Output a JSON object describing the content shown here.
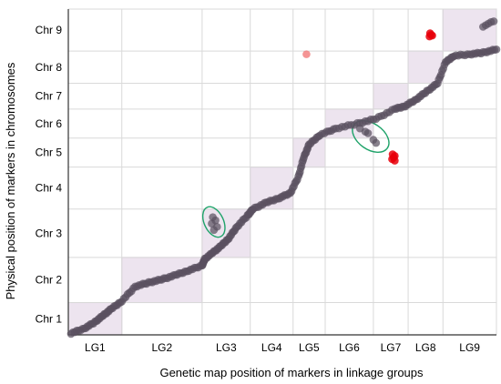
{
  "chart_data": {
    "type": "scatter",
    "xlabel": "Genetic map position of markers in linkage groups",
    "ylabel": "Physical position of markers in chromosomes",
    "x_categories": [
      "LG1",
      "LG2",
      "LG3",
      "LG4",
      "LG5",
      "LG6",
      "LG7",
      "LG8",
      "LG9"
    ],
    "y_categories": [
      "Chr 1",
      "Chr 2",
      "Chr 3",
      "Chr 4",
      "Chr 5",
      "Chr 6",
      "Chr 7",
      "Chr 8",
      "Chr 9"
    ],
    "x_boundaries": [
      0,
      1.0,
      2.5,
      3.4,
      4.2,
      4.8,
      5.7,
      6.35,
      7.0,
      8.0
    ],
    "y_boundaries": [
      0,
      1.0,
      2.4,
      3.9,
      5.2,
      6.1,
      7.0,
      7.8,
      8.8,
      10.1
    ],
    "grid": true,
    "diagonal_boxes": true,
    "colors": {
      "markers": "#5a5060",
      "outliers": "#e8000b",
      "faint_outlier": "#f07070",
      "ellipse": "#1fa36a",
      "box_fill": "#ede4ef",
      "box_stroke": "#d8c8dc",
      "grid": "#d9d9d9",
      "axis": "#333333"
    },
    "marker_path": [
      [
        0.05,
        0.05
      ],
      [
        0.3,
        0.2
      ],
      [
        0.5,
        0.4
      ],
      [
        0.65,
        0.6
      ],
      [
        0.8,
        0.8
      ],
      [
        1.0,
        1.05
      ],
      [
        1.25,
        1.5
      ],
      [
        1.5,
        1.62
      ],
      [
        1.75,
        1.72
      ],
      [
        2.0,
        1.85
      ],
      [
        2.25,
        2.0
      ],
      [
        2.5,
        2.15
      ],
      [
        2.55,
        2.35
      ],
      [
        2.7,
        2.55
      ],
      [
        2.85,
        2.75
      ],
      [
        3.0,
        3.0
      ],
      [
        3.15,
        3.35
      ],
      [
        3.35,
        3.7
      ],
      [
        3.45,
        3.9
      ],
      [
        3.7,
        4.1
      ],
      [
        3.95,
        4.25
      ],
      [
        4.15,
        4.4
      ],
      [
        4.3,
        4.9
      ],
      [
        4.4,
        5.5
      ],
      [
        4.5,
        5.9
      ],
      [
        4.7,
        6.2
      ],
      [
        5.0,
        6.4
      ],
      [
        5.4,
        6.55
      ],
      [
        5.75,
        6.7
      ],
      [
        6.1,
        7.0
      ],
      [
        6.3,
        7.1
      ],
      [
        6.5,
        7.3
      ],
      [
        6.7,
        7.55
      ],
      [
        6.9,
        7.8
      ],
      [
        7.05,
        8.45
      ],
      [
        7.2,
        8.65
      ],
      [
        7.5,
        8.7
      ],
      [
        7.75,
        8.75
      ],
      [
        8.0,
        8.85
      ]
    ],
    "extra_markers": [
      [
        7.75,
        9.55
      ],
      [
        7.85,
        9.65
      ],
      [
        7.9,
        9.7
      ],
      [
        7.8,
        9.6
      ],
      [
        7.95,
        9.72
      ],
      [
        2.7,
        3.65
      ],
      [
        2.75,
        3.55
      ],
      [
        2.68,
        3.45
      ],
      [
        2.78,
        3.35
      ],
      [
        2.72,
        3.25
      ],
      [
        5.45,
        6.4
      ],
      [
        5.55,
        6.3
      ],
      [
        5.6,
        6.25
      ],
      [
        5.7,
        6.05
      ],
      [
        5.75,
        5.95
      ]
    ],
    "outlier_markers": [
      [
        4.45,
        8.7
      ],
      [
        6.05,
        5.45
      ],
      [
        6.08,
        5.5
      ],
      [
        6.1,
        5.55
      ],
      [
        6.06,
        5.6
      ],
      [
        6.1,
        5.4
      ],
      [
        6.75,
        9.25
      ],
      [
        6.78,
        9.3
      ],
      [
        6.76,
        9.35
      ],
      [
        6.8,
        9.28
      ]
    ],
    "ellipses": [
      {
        "cx": 2.72,
        "cy": 3.5,
        "rx": 0.18,
        "ry": 0.5,
        "rotation": -25
      },
      {
        "cx": 5.65,
        "cy": 6.15,
        "rx": 0.38,
        "ry": 0.4,
        "rotation": 35
      }
    ]
  }
}
